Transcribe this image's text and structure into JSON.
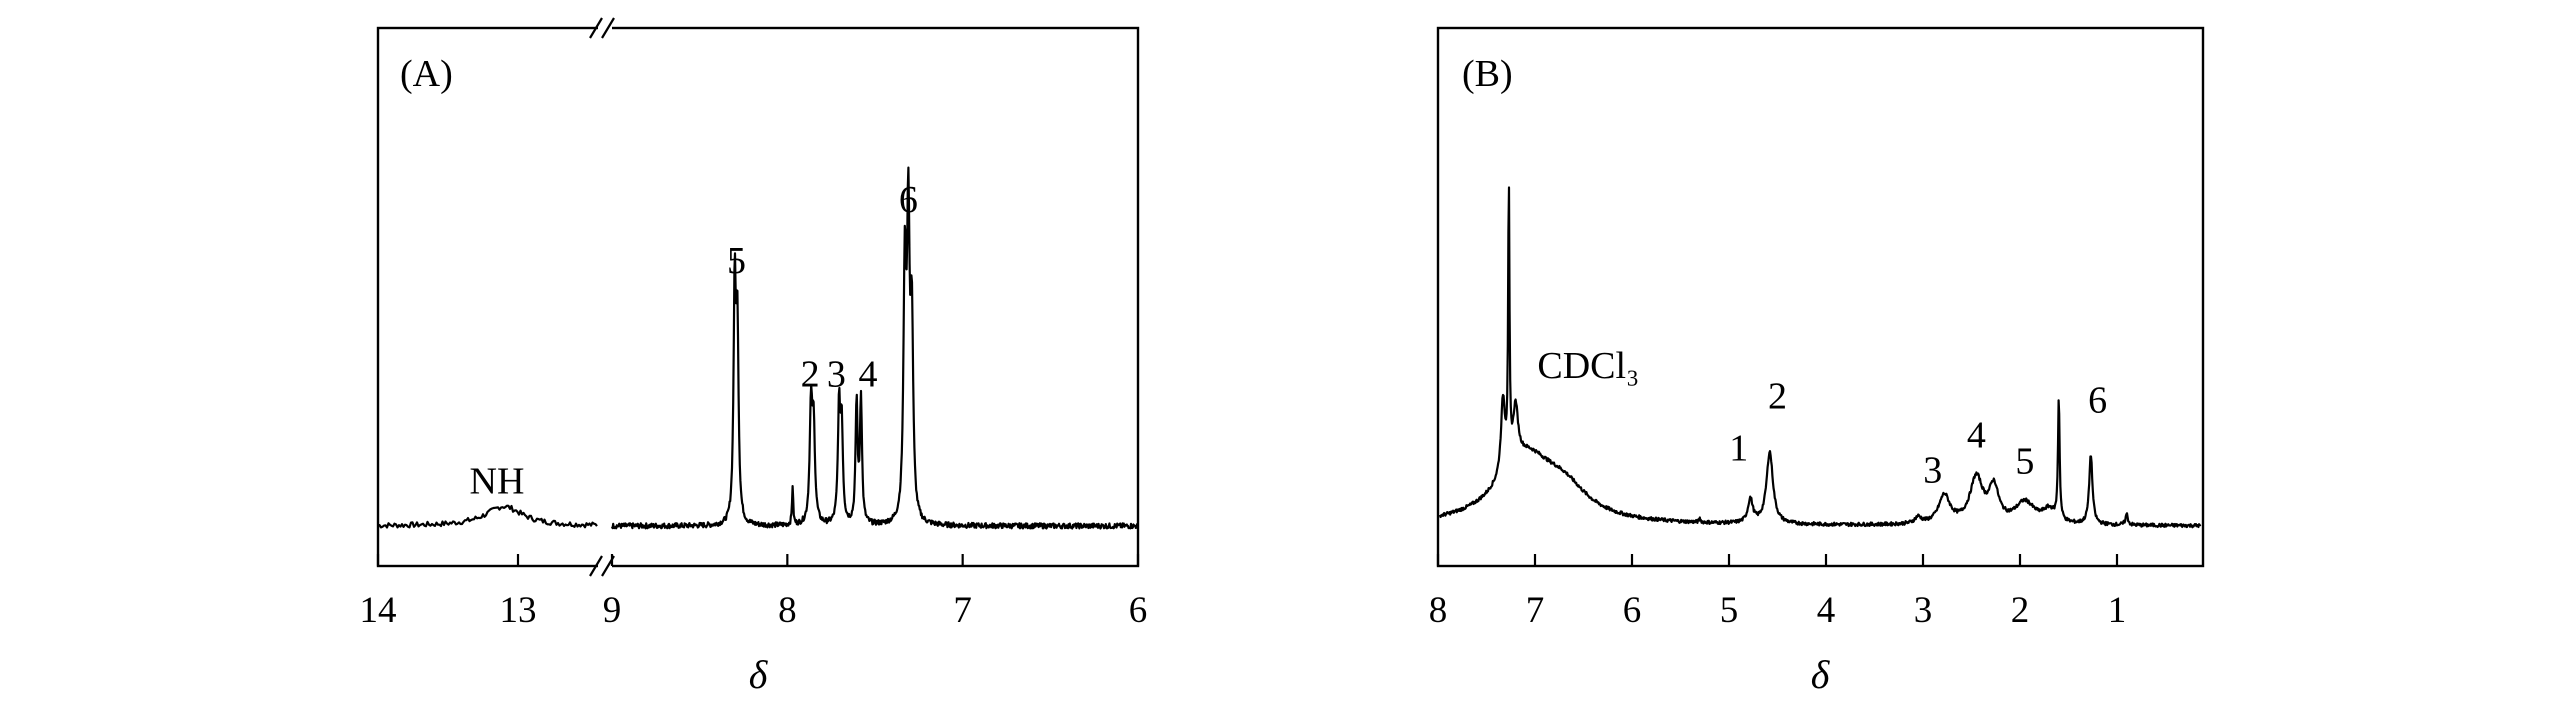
{
  "chart_data": [
    {
      "type": "line",
      "panel_label": "(A)",
      "xlabel": "δ",
      "axis_break": {
        "from": 13.0,
        "to": 9.0
      },
      "xlim_segments": [
        [
          14,
          12.2
        ],
        [
          9,
          6
        ]
      ],
      "x_ticks": [
        {
          "value": 14,
          "label": "14"
        },
        {
          "value": 13,
          "label": "13"
        },
        {
          "value": 9,
          "label": "9"
        },
        {
          "value": 8,
          "label": "8"
        },
        {
          "value": 7,
          "label": "7"
        },
        {
          "value": 6,
          "label": "6"
        }
      ],
      "baseline": 0.0,
      "ylim": [
        -0.09,
        1.0
      ],
      "peaks": [
        {
          "x": 13.1,
          "h": 0.045,
          "w": 0.16
        },
        {
          "x": 7.97,
          "h": 0.09,
          "w": 0.004
        },
        {
          "x": 8.3,
          "h": 0.53,
          "w": 0.008
        },
        {
          "x": 8.285,
          "h": 0.43,
          "w": 0.008
        },
        {
          "x": 7.865,
          "h": 0.26,
          "w": 0.009
        },
        {
          "x": 7.85,
          "h": 0.21,
          "w": 0.009
        },
        {
          "x": 7.705,
          "h": 0.26,
          "w": 0.008
        },
        {
          "x": 7.69,
          "h": 0.22,
          "w": 0.008
        },
        {
          "x": 7.605,
          "h": 0.28,
          "w": 0.007
        },
        {
          "x": 7.58,
          "h": 0.29,
          "w": 0.007
        },
        {
          "x": 7.33,
          "h": 0.56,
          "w": 0.009
        },
        {
          "x": 7.31,
          "h": 0.66,
          "w": 0.009
        },
        {
          "x": 7.29,
          "h": 0.44,
          "w": 0.009
        }
      ],
      "annotations": [
        {
          "text": "NH",
          "x": 13.15,
          "y": 0.075
        },
        {
          "text": "5",
          "x": 8.29,
          "y": 0.58
        },
        {
          "text": "2",
          "x": 7.87,
          "y": 0.32
        },
        {
          "text": "3",
          "x": 7.72,
          "y": 0.32
        },
        {
          "text": "4",
          "x": 7.54,
          "y": 0.32
        },
        {
          "text": "6",
          "x": 7.31,
          "y": 0.72
        }
      ]
    },
    {
      "type": "line",
      "panel_label": "(B)",
      "xlabel": "δ",
      "xlim": [
        8,
        0.2
      ],
      "x_ticks": [
        {
          "value": 8,
          "label": "8"
        },
        {
          "value": 7,
          "label": "7"
        },
        {
          "value": 6,
          "label": "6"
        },
        {
          "value": 5,
          "label": "5"
        },
        {
          "value": 4,
          "label": "4"
        },
        {
          "value": 3,
          "label": "3"
        },
        {
          "value": 2,
          "label": "2"
        },
        {
          "value": 1,
          "label": "1"
        }
      ],
      "baseline": 0.0,
      "ylim": [
        -0.09,
        1.0
      ],
      "peaks": [
        {
          "x": 7.27,
          "h": 0.63,
          "w": 0.008
        },
        {
          "x": 7.33,
          "h": 0.17,
          "w": 0.025
        },
        {
          "x": 7.2,
          "h": 0.12,
          "w": 0.03
        },
        {
          "x": 7.1,
          "h": 0.15,
          "w": 0.35
        },
        {
          "x": 6.7,
          "h": 0.06,
          "w": 0.3
        },
        {
          "x": 5.3,
          "h": 0.008,
          "w": 0.01
        },
        {
          "x": 4.78,
          "h": 0.055,
          "w": 0.03
        },
        {
          "x": 4.58,
          "h": 0.165,
          "w": 0.04
        },
        {
          "x": 3.05,
          "h": 0.015,
          "w": 0.04
        },
        {
          "x": 2.78,
          "h": 0.065,
          "w": 0.07
        },
        {
          "x": 2.45,
          "h": 0.105,
          "w": 0.08
        },
        {
          "x": 2.27,
          "h": 0.08,
          "w": 0.06
        },
        {
          "x": 1.95,
          "h": 0.05,
          "w": 0.12
        },
        {
          "x": 1.7,
          "h": 0.03,
          "w": 0.08
        },
        {
          "x": 1.6,
          "h": 0.28,
          "w": 0.01
        },
        {
          "x": 1.27,
          "h": 0.16,
          "w": 0.02
        },
        {
          "x": 0.9,
          "h": 0.025,
          "w": 0.015
        }
      ],
      "annotations": [
        {
          "text": "CDCl₃",
          "x": 6.45,
          "y": 0.34
        },
        {
          "text": "1",
          "x": 4.9,
          "y": 0.15
        },
        {
          "text": "2",
          "x": 4.5,
          "y": 0.27
        },
        {
          "text": "3",
          "x": 2.9,
          "y": 0.1
        },
        {
          "text": "4",
          "x": 2.45,
          "y": 0.18
        },
        {
          "text": "5",
          "x": 1.95,
          "y": 0.12
        },
        {
          "text": "6",
          "x": 1.2,
          "y": 0.26
        }
      ]
    }
  ]
}
